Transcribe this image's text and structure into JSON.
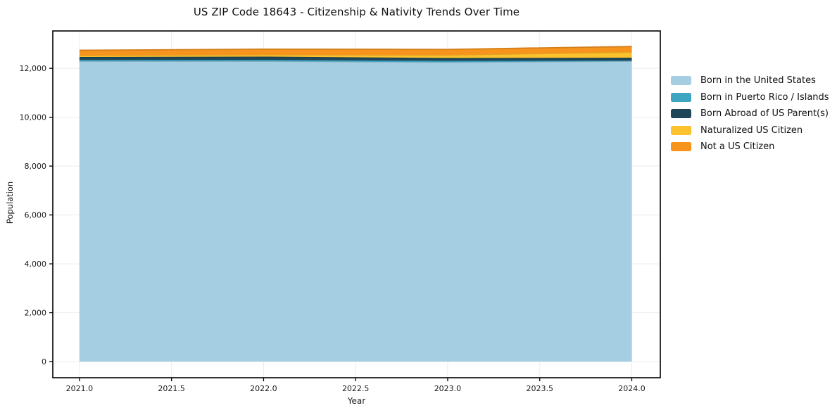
{
  "chart_data": {
    "type": "area",
    "stacked": true,
    "title": "US ZIP Code 18643 - Citizenship & Nativity Trends Over Time",
    "xlabel": "Year",
    "ylabel": "Population",
    "x": [
      2021,
      2022,
      2023,
      2024
    ],
    "series": [
      {
        "name": "Born in the United States",
        "color": "#a6cee3",
        "values": [
          12290,
          12290,
          12250,
          12290
        ]
      },
      {
        "name": "Born in Puerto Rico / Islands",
        "color": "#3da4c2",
        "values": [
          60,
          60,
          60,
          30
        ]
      },
      {
        "name": "Born Abroad of US Parent(s)",
        "color": "#1f4658",
        "values": [
          115,
          130,
          115,
          115
        ]
      },
      {
        "name": "Naturalized US Citizen",
        "color": "#fcc22d",
        "values": [
          60,
          75,
          120,
          230
        ]
      },
      {
        "name": "Not a US Citizen",
        "color": "#f7941e",
        "values": [
          215,
          230,
          230,
          230
        ]
      }
    ],
    "xlim": [
      2020.855,
      2024.155
    ],
    "ylim": [
      -660,
      13530
    ],
    "xticks": [
      2021.0,
      2021.5,
      2022.0,
      2022.5,
      2023.0,
      2023.5,
      2024.0
    ],
    "yticks": [
      0,
      2000,
      4000,
      6000,
      8000,
      10000,
      12000
    ],
    "grid": true,
    "legend_position": "right"
  }
}
